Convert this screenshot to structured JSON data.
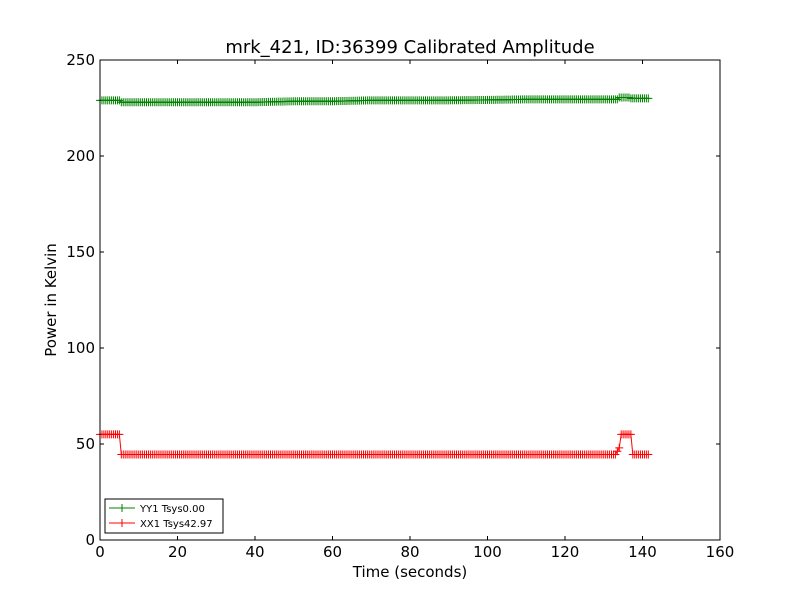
{
  "chart_data": {
    "type": "line",
    "title": "mrk_421, ID:36399 Calibrated Amplitude",
    "xlabel": "Time (seconds)",
    "ylabel": "Power in Kelvin",
    "xlim": [
      0,
      160
    ],
    "ylim": [
      0,
      250
    ],
    "xticks": [
      0,
      20,
      40,
      60,
      80,
      100,
      120,
      140,
      160
    ],
    "yticks": [
      0,
      50,
      100,
      150,
      200,
      250
    ],
    "xtick_labels": [
      "0",
      "20",
      "40",
      "60",
      "80",
      "100",
      "120",
      "140",
      "160"
    ],
    "ytick_labels": [
      "0",
      "50",
      "100",
      "150",
      "200",
      "250"
    ],
    "grid": false,
    "legend_position": "bottom-left",
    "marker": "+",
    "series": [
      {
        "name": "YY1 Tsys0.00",
        "color": "#008000",
        "x": [
          0,
          5,
          5.5,
          10,
          20,
          30,
          40,
          50,
          60,
          70,
          80,
          90,
          100,
          110,
          120,
          130,
          133.5,
          134,
          136.5,
          137,
          141.5
        ],
        "values": [
          229,
          229,
          228,
          228,
          228,
          228,
          228,
          228.5,
          228.5,
          229,
          229,
          229,
          229.2,
          229.5,
          229.5,
          229.5,
          229.5,
          230.5,
          230.5,
          230,
          230
        ]
      },
      {
        "name": "XX1 Tsys42.97",
        "color": "#ff0000",
        "x": [
          0,
          5,
          5.5,
          10,
          20,
          40,
          60,
          80,
          100,
          120,
          133,
          134,
          134.5,
          137,
          137.5,
          141.5
        ],
        "values": [
          55,
          55,
          44.5,
          44.5,
          44.5,
          44.5,
          44.5,
          44.5,
          44.5,
          44.5,
          44.5,
          48,
          55,
          55,
          44.5,
          44.5
        ]
      }
    ]
  }
}
